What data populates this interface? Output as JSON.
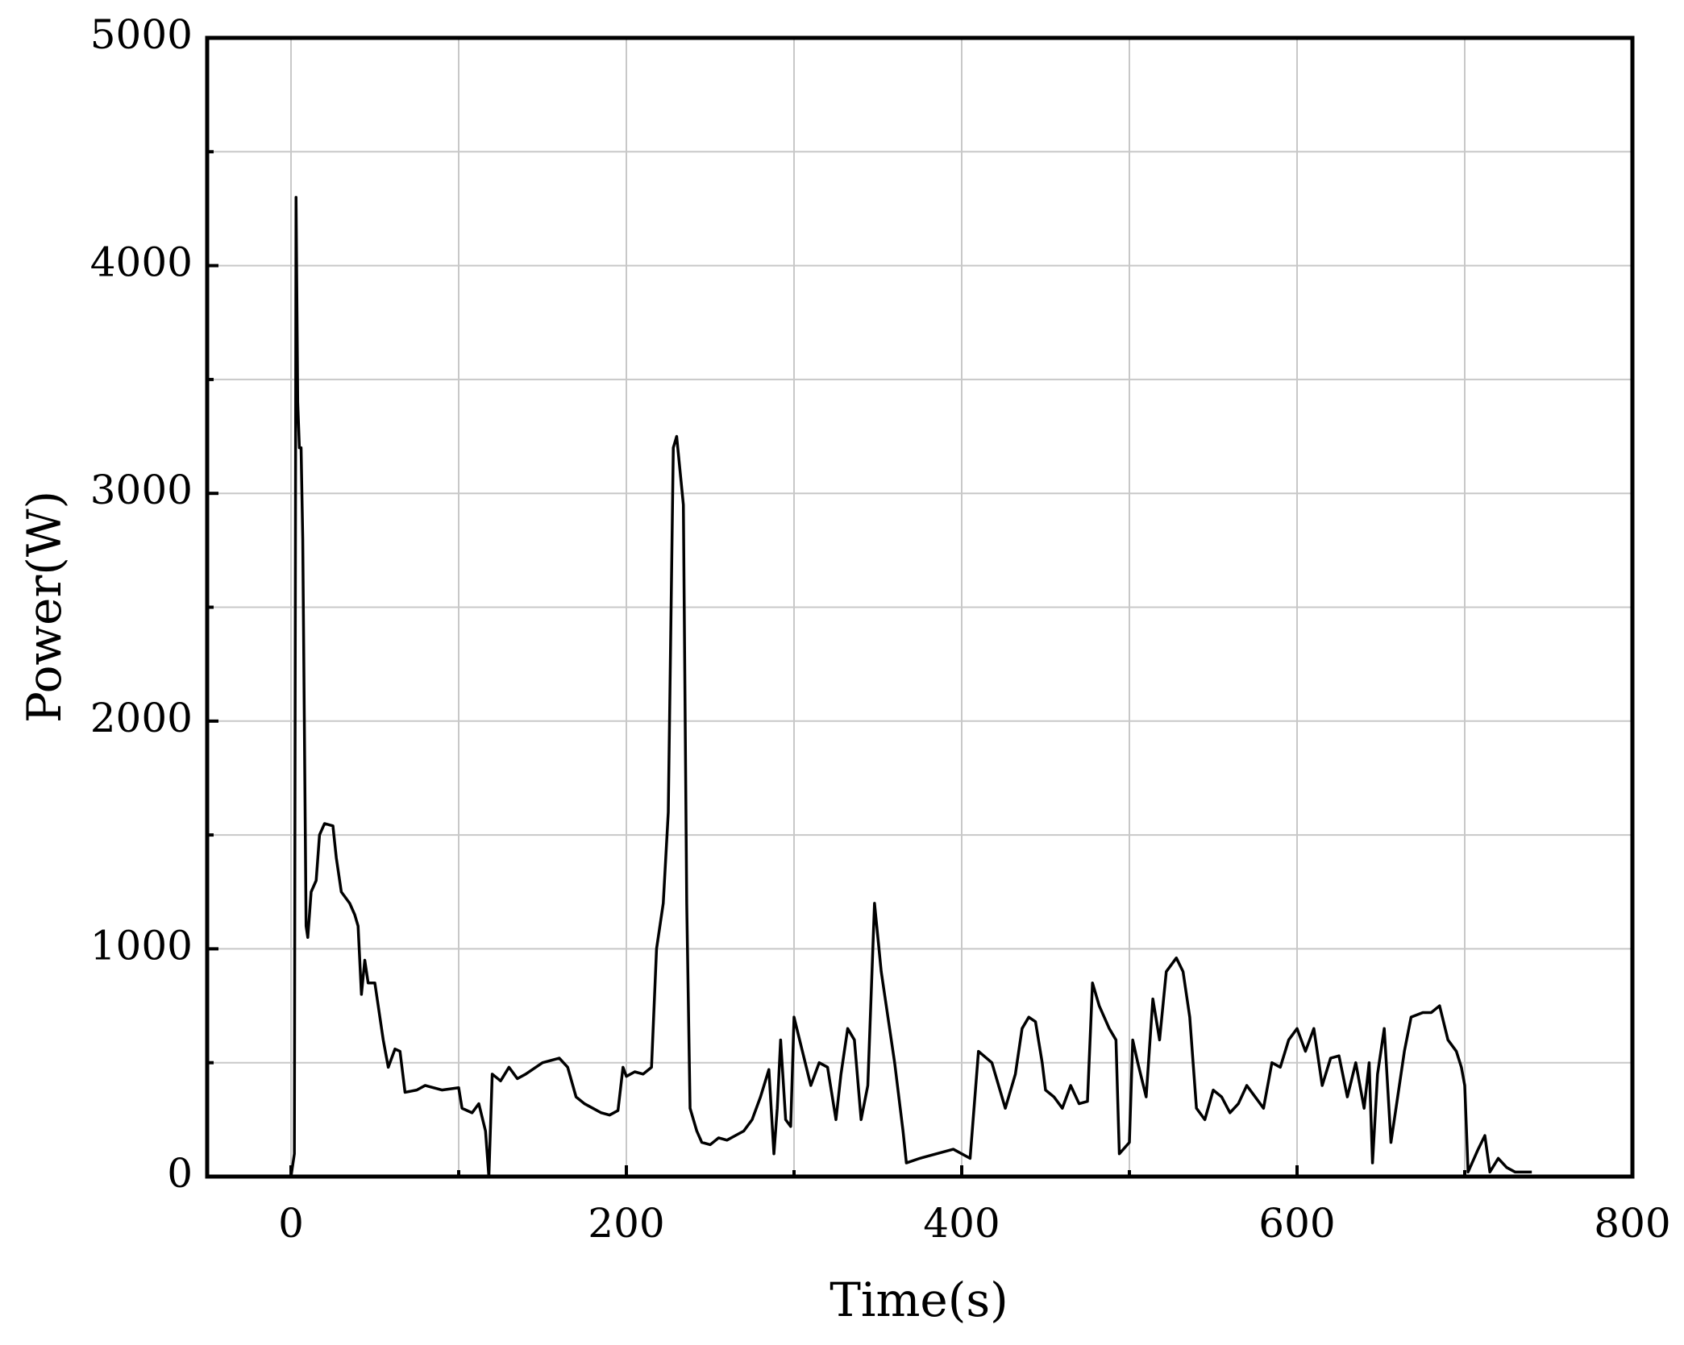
{
  "chart_data": {
    "type": "line",
    "x_label": "Time(s)",
    "y_label": "Power(W)",
    "xlim": [
      -50,
      800
    ],
    "ylim": [
      0,
      5000
    ],
    "xticks": [
      0,
      200,
      400,
      600,
      800
    ],
    "xminorticks": [
      100,
      300,
      500,
      700
    ],
    "yticks": [
      0,
      1000,
      2000,
      3000,
      4000,
      5000
    ],
    "yminorticks": [
      500,
      1500,
      2500,
      3500,
      4500
    ],
    "grid": true,
    "series": [
      {
        "color": "#000000",
        "x": [
          0,
          2,
          3,
          4,
          5,
          6,
          7,
          9,
          10,
          12,
          15,
          17,
          20,
          25,
          27,
          30,
          35,
          38,
          40,
          42,
          44,
          46,
          50,
          52,
          55,
          58,
          62,
          65,
          68,
          75,
          80,
          90,
          100,
          102,
          108,
          112,
          116,
          118,
          120,
          125,
          130,
          135,
          140,
          150,
          160,
          165,
          170,
          175,
          180,
          185,
          190,
          195,
          198,
          200,
          205,
          210,
          215,
          218,
          222,
          225,
          228,
          230,
          232,
          234,
          236,
          238,
          242,
          245,
          250,
          255,
          260,
          265,
          270,
          275,
          280,
          285,
          288,
          290,
          292,
          295,
          298,
          300,
          305,
          310,
          315,
          320,
          325,
          328,
          332,
          336,
          340,
          344,
          348,
          352,
          356,
          360,
          365,
          367,
          375,
          385,
          395,
          405,
          410,
          418,
          422,
          426,
          432,
          436,
          440,
          444,
          448,
          450,
          455,
          460,
          465,
          470,
          475,
          478,
          482,
          488,
          492,
          494,
          500,
          502,
          505,
          510,
          514,
          518,
          522,
          528,
          532,
          536,
          540,
          545,
          550,
          555,
          560,
          565,
          570,
          575,
          580,
          585,
          590,
          595,
          600,
          605,
          610,
          615,
          620,
          625,
          630,
          635,
          640,
          643,
          645,
          648,
          652,
          656,
          660,
          664,
          668,
          675,
          680,
          685,
          690,
          695,
          698,
          700,
          702,
          708,
          712,
          715,
          720,
          725,
          730,
          740
        ],
        "values": [
          0,
          100,
          4300,
          3400,
          3200,
          3200,
          2800,
          1100,
          1050,
          1250,
          1300,
          1500,
          1550,
          1540,
          1400,
          1250,
          1200,
          1150,
          1100,
          800,
          950,
          850,
          850,
          750,
          600,
          480,
          560,
          550,
          370,
          380,
          400,
          380,
          390,
          300,
          280,
          320,
          200,
          0,
          450,
          420,
          480,
          430,
          450,
          500,
          520,
          480,
          350,
          320,
          300,
          280,
          270,
          290,
          480,
          440,
          460,
          450,
          480,
          1000,
          1200,
          1600,
          3200,
          3250,
          3100,
          2950,
          1200,
          300,
          200,
          150,
          140,
          170,
          160,
          180,
          200,
          250,
          350,
          470,
          100,
          300,
          600,
          250,
          220,
          700,
          550,
          400,
          500,
          480,
          250,
          450,
          650,
          600,
          250,
          400,
          1200,
          900,
          700,
          500,
          200,
          60,
          80,
          100,
          120,
          80,
          550,
          500,
          400,
          300,
          450,
          650,
          700,
          680,
          500,
          380,
          350,
          300,
          400,
          320,
          330,
          850,
          750,
          650,
          600,
          100,
          150,
          600,
          500,
          350,
          780,
          600,
          900,
          960,
          900,
          700,
          300,
          250,
          380,
          350,
          280,
          320,
          400,
          350,
          300,
          500,
          480,
          600,
          650,
          550,
          650,
          400,
          520,
          530,
          350,
          500,
          300,
          500,
          60,
          450,
          650,
          150,
          350,
          550,
          700,
          720,
          720,
          750,
          600,
          550,
          480,
          400,
          20,
          120,
          180,
          20,
          80,
          40,
          20,
          20
        ]
      }
    ]
  }
}
